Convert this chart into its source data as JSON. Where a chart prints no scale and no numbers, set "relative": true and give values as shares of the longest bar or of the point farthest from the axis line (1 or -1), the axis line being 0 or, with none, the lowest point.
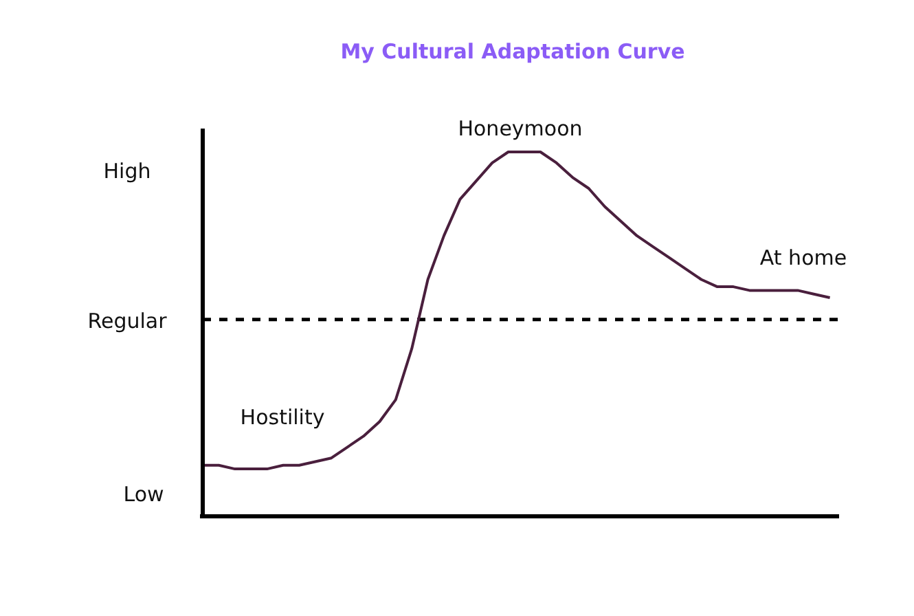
{
  "chart_data": {
    "type": "line",
    "title": "My Cultural Adaptation Curve",
    "relative": true,
    "categories": [
      null,
      null,
      null,
      null,
      null,
      null,
      null,
      null,
      null,
      null,
      null,
      null,
      null,
      null,
      null,
      null,
      null,
      null,
      null,
      null,
      null,
      null,
      null,
      null,
      null,
      null,
      null,
      null,
      null,
      null,
      null,
      null,
      null,
      null,
      null,
      null,
      null,
      null,
      null,
      null
    ],
    "series": [
      {
        "color": "#4a1f3d",
        "values": [
          0.14,
          0.14,
          0.13,
          0.13,
          0.13,
          0.14,
          0.14,
          0.15,
          0.16,
          0.19,
          0.22,
          0.26,
          0.32,
          0.46,
          0.65,
          0.77,
          0.87,
          0.92,
          0.97,
          1.0,
          1.0,
          1.0,
          0.97,
          0.93,
          0.9,
          0.85,
          0.81,
          0.77,
          0.74,
          0.71,
          0.68,
          0.65,
          0.63,
          0.63,
          0.62,
          0.62,
          0.62,
          0.62,
          0.61,
          0.6
        ]
      }
    ],
    "line_style": "solid",
    "ref_lines": [
      {
        "axis": "y",
        "value": 0.54,
        "color": "#000000",
        "line_style": "dashed"
      }
    ],
    "annotations": [
      "Low",
      "Regular",
      "High",
      "Hostility",
      "Honeymoon",
      "At home"
    ]
  }
}
